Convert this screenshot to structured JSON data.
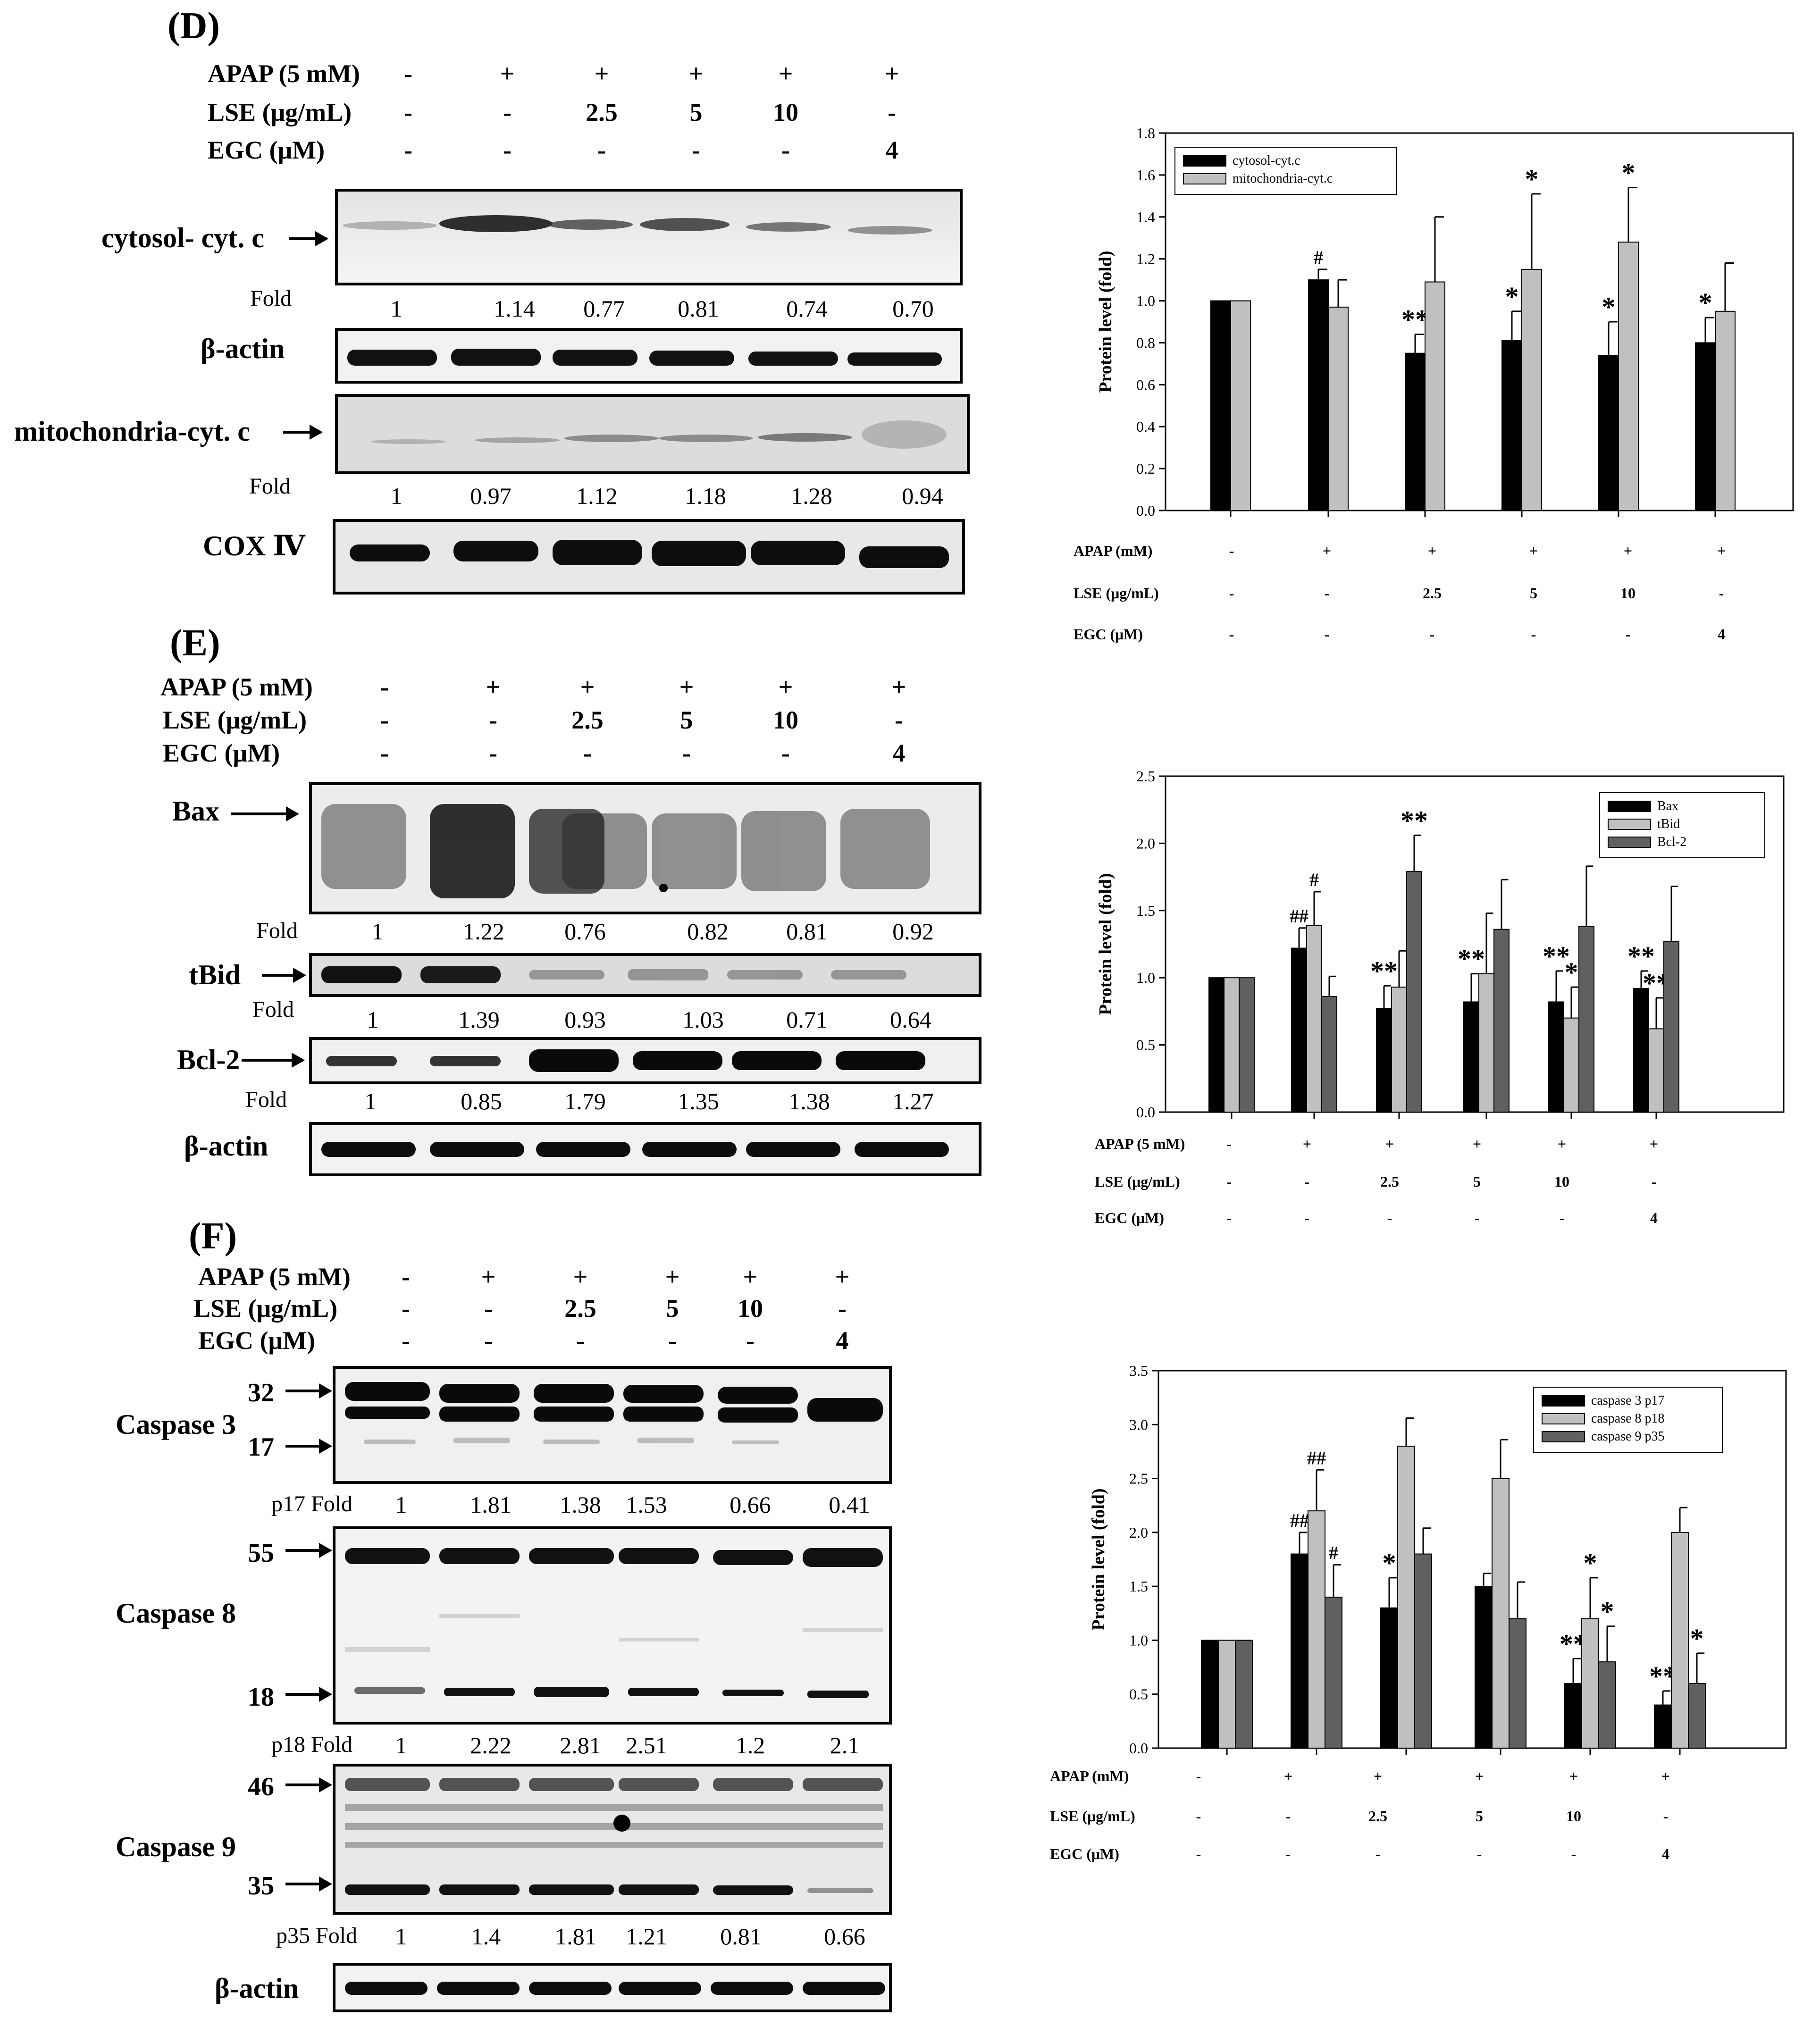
{
  "panels": [
    {
      "id": "D",
      "letter": "(D)",
      "treat_labels": [
        "APAP (5 mM)",
        "LSE (μg/mL)",
        "EGC  (μM)"
      ],
      "treat_values": [
        [
          "-",
          "+",
          "+",
          "+",
          "+",
          "+"
        ],
        [
          "-",
          "-",
          "2.5",
          "5",
          "10",
          "-"
        ],
        [
          "-",
          "-",
          "-",
          "-",
          "-",
          "4"
        ]
      ],
      "blots": [
        {
          "label": "cytosol- cyt. c",
          "fold_label": "Fold",
          "folds": [
            "1",
            "1.14",
            "0.77",
            "0.81",
            "0.74",
            "0.70"
          ]
        },
        {
          "label": "β-actin"
        },
        {
          "label": "mitochondria-cyt. c",
          "fold_label": "Fold",
          "folds": [
            "1",
            "0.97",
            "1.12",
            "1.18",
            "1.28",
            "0.94"
          ]
        },
        {
          "label": "COX Ⅳ"
        }
      ]
    },
    {
      "id": "E",
      "letter": "(E)",
      "treat_labels": [
        "APAP (5 mM)",
        "LSE (μg/mL)",
        "EGC  (μM)"
      ],
      "treat_values": [
        [
          "-",
          "+",
          "+",
          "+",
          "+",
          "+"
        ],
        [
          "-",
          "-",
          "2.5",
          "5",
          "10",
          "-"
        ],
        [
          "-",
          "-",
          "-",
          "-",
          "-",
          "4"
        ]
      ],
      "blots": [
        {
          "label": "Bax",
          "fold_label": "Fold",
          "folds": [
            "1",
            "1.22",
            "0.76",
            "0.82",
            "0.81",
            "0.92"
          ]
        },
        {
          "label": "tBid",
          "fold_label": "Fold",
          "folds": [
            "1",
            "1.39",
            "0.93",
            "1.03",
            "0.71",
            "0.64"
          ]
        },
        {
          "label": "Bcl-2",
          "fold_label": "Fold",
          "folds": [
            "1",
            "0.85",
            "1.79",
            "1.35",
            "1.38",
            "1.27"
          ]
        },
        {
          "label": "β-actin"
        }
      ]
    },
    {
      "id": "F",
      "letter": "(F)",
      "treat_labels": [
        "APAP (5 mM)",
        "LSE (μg/mL)",
        "EGC  (μM)"
      ],
      "treat_values": [
        [
          "-",
          "+",
          "+",
          "+",
          "+",
          "+"
        ],
        [
          "-",
          "-",
          "2.5",
          "5",
          "10",
          "-"
        ],
        [
          "-",
          "-",
          "-",
          "-",
          "-",
          "4"
        ]
      ],
      "blots": [
        {
          "label": "Caspase 3",
          "mw": [
            "32",
            "17"
          ],
          "fold_label": "p17 Fold",
          "folds": [
            "1",
            "1.81",
            "1.38",
            "1.53",
            "0.66",
            "0.41"
          ]
        },
        {
          "label": "Caspase 8",
          "mw": [
            "55",
            "18"
          ],
          "fold_label": "p18 Fold",
          "folds": [
            "1",
            "2.22",
            "2.81",
            "2.51",
            "1.2",
            "2.1"
          ]
        },
        {
          "label": "Caspase 9",
          "mw": [
            "46",
            "35"
          ],
          "fold_label": "p35 Fold",
          "folds": [
            "1",
            "1.4",
            "1.81",
            "1.21",
            "0.81",
            "0.66"
          ]
        },
        {
          "label": "β-actin"
        }
      ]
    }
  ],
  "chart_data": [
    {
      "type": "bar",
      "ylabel": "Protein level (fold)",
      "ylim": [
        0,
        1.8
      ],
      "yticks": [
        "0.0",
        "0.2",
        "0.4",
        "0.6",
        "0.8",
        "1.0",
        "1.2",
        "1.4",
        "1.6",
        "1.8"
      ],
      "legend_position": "top-left",
      "row_labels": [
        "APAP (mM)",
        "LSE (μg/mL)",
        "EGC   (μM)"
      ],
      "row_values": [
        [
          "-",
          "+",
          "+",
          "+",
          "+",
          "+"
        ],
        [
          "-",
          "-",
          "2.5",
          "5",
          "10",
          "-"
        ],
        [
          "-",
          "-",
          "-",
          "-",
          "-",
          "4"
        ]
      ],
      "series": [
        {
          "name": "cytosol-cyt.c",
          "color": "#000000",
          "values": [
            1.0,
            1.1,
            0.75,
            0.81,
            0.74,
            0.8
          ],
          "errors": [
            0,
            0.05,
            0.09,
            0.14,
            0.16,
            0.12
          ],
          "marks": [
            "",
            "#",
            "**",
            "*",
            "*",
            "*"
          ]
        },
        {
          "name": "mitochondria-cyt.c",
          "color": "#c0c0c0",
          "values": [
            1.0,
            0.97,
            1.09,
            1.15,
            1.28,
            0.95
          ],
          "errors": [
            0,
            0.13,
            0.31,
            0.36,
            0.26,
            0.23
          ],
          "marks": [
            "",
            "",
            "",
            "*",
            "*",
            ""
          ]
        }
      ]
    },
    {
      "type": "bar",
      "ylabel": "Protein level (fold)",
      "ylim": [
        0,
        2.5
      ],
      "yticks": [
        "0.0",
        "0.5",
        "1.0",
        "1.5",
        "2.0",
        "2.5"
      ],
      "legend_position": "top-right",
      "row_labels": [
        "APAP (5 mM)",
        "LSE (μg/mL)",
        "EGC   (μM)"
      ],
      "row_values": [
        [
          "-",
          "+",
          "+",
          "+",
          "+",
          "+"
        ],
        [
          "-",
          "-",
          "2.5",
          "5",
          "10",
          "-"
        ],
        [
          "-",
          "-",
          "-",
          "-",
          "-",
          "4"
        ]
      ],
      "series": [
        {
          "name": "Bax",
          "color": "#000000",
          "values": [
            1.0,
            1.22,
            0.77,
            0.82,
            0.82,
            0.92
          ],
          "errors": [
            0,
            0.15,
            0.17,
            0.21,
            0.23,
            0.13
          ],
          "marks": [
            "",
            "##",
            "**",
            "**",
            "**",
            "**"
          ]
        },
        {
          "name": "tBid",
          "color": "#c0c0c0",
          "values": [
            1.0,
            1.39,
            0.93,
            1.03,
            0.7,
            0.62
          ],
          "errors": [
            0,
            0.25,
            0.27,
            0.45,
            0.23,
            0.23
          ],
          "marks": [
            "",
            "#",
            "",
            "",
            "*",
            "**"
          ]
        },
        {
          "name": "Bcl-2",
          "color": "#606060",
          "values": [
            1.0,
            0.86,
            1.79,
            1.36,
            1.38,
            1.27
          ],
          "errors": [
            0,
            0.15,
            0.27,
            0.37,
            0.45,
            0.41
          ],
          "marks": [
            "",
            "",
            "**",
            "",
            "",
            ""
          ]
        }
      ]
    },
    {
      "type": "bar",
      "ylabel": "Protein level (fold)",
      "ylim": [
        0,
        3.5
      ],
      "yticks": [
        "0.0",
        "0.5",
        "1.0",
        "1.5",
        "2.0",
        "2.5",
        "3.0",
        "3.5"
      ],
      "legend_position": "top-right",
      "row_labels": [
        "APAP (mM)",
        "LSE (μg/mL)",
        "EGC   (μM)"
      ],
      "row_values": [
        [
          "-",
          "+",
          "+",
          "+",
          "+",
          "+"
        ],
        [
          "-",
          "-",
          "2.5",
          "5",
          "10",
          "-"
        ],
        [
          "-",
          "-",
          "-",
          "-",
          "-",
          "4"
        ]
      ],
      "series": [
        {
          "name": "caspase 3 p17",
          "color": "#000000",
          "values": [
            1.0,
            1.8,
            1.3,
            1.5,
            0.6,
            0.4
          ],
          "errors": [
            0,
            0.2,
            0.28,
            0.12,
            0.23,
            0.13
          ],
          "marks": [
            "",
            "##",
            "*",
            "",
            "**",
            "**"
          ]
        },
        {
          "name": "caspase 8 p18",
          "color": "#c0c0c0",
          "values": [
            1.0,
            2.2,
            2.8,
            2.5,
            1.2,
            2.0
          ],
          "errors": [
            0,
            0.38,
            0.26,
            0.36,
            0.38,
            0.23
          ],
          "marks": [
            "",
            "##",
            "",
            "",
            "*",
            ""
          ]
        },
        {
          "name": "caspase 9 p35",
          "color": "#606060",
          "values": [
            1.0,
            1.4,
            1.8,
            1.2,
            0.8,
            0.6
          ],
          "errors": [
            0,
            0.3,
            0.24,
            0.34,
            0.33,
            0.28
          ],
          "marks": [
            "",
            "#",
            "",
            "",
            "*",
            "*"
          ]
        }
      ]
    }
  ]
}
